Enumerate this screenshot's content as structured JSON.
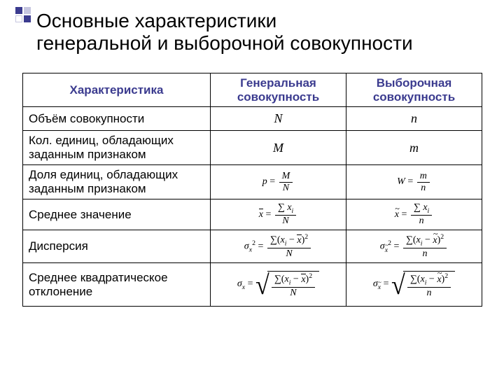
{
  "title_line1": "Основные характеристики",
  "title_line2": "генеральной и выборочной совокупности",
  "decor_colors": {
    "dark": "#3b3b8f",
    "light": "#c6c6e0",
    "white": "#ffffff"
  },
  "header": {
    "col0": "Характеристика",
    "col1": "Генеральная совокупность",
    "col2": "Выборочная совокупность",
    "text_color": "#3b3b8f"
  },
  "rows": [
    {
      "label": "Объём совокупности",
      "gen": "N",
      "samp": "n",
      "kind": "symbol"
    },
    {
      "label": "Кол. единиц, обладающих заданным признаком",
      "gen": "M",
      "samp": "m",
      "kind": "symbol"
    },
    {
      "label": "Доля единиц, обладающих заданным признаком",
      "kind": "share"
    },
    {
      "label": "Среднее значение",
      "kind": "mean"
    },
    {
      "label": "Дисперсия",
      "kind": "variance"
    },
    {
      "label": "Среднее квадратическое отклонение",
      "kind": "stddev"
    }
  ],
  "symbols": {
    "p": "p",
    "W": "W",
    "M": "M",
    "N": "N",
    "m": "m",
    "n": "n",
    "x": "x",
    "sigma": "σ",
    "Sigma": "∑",
    "eq": "=",
    "i": "i",
    "two": "2",
    "xbar": "x",
    "xtilde": "x"
  }
}
